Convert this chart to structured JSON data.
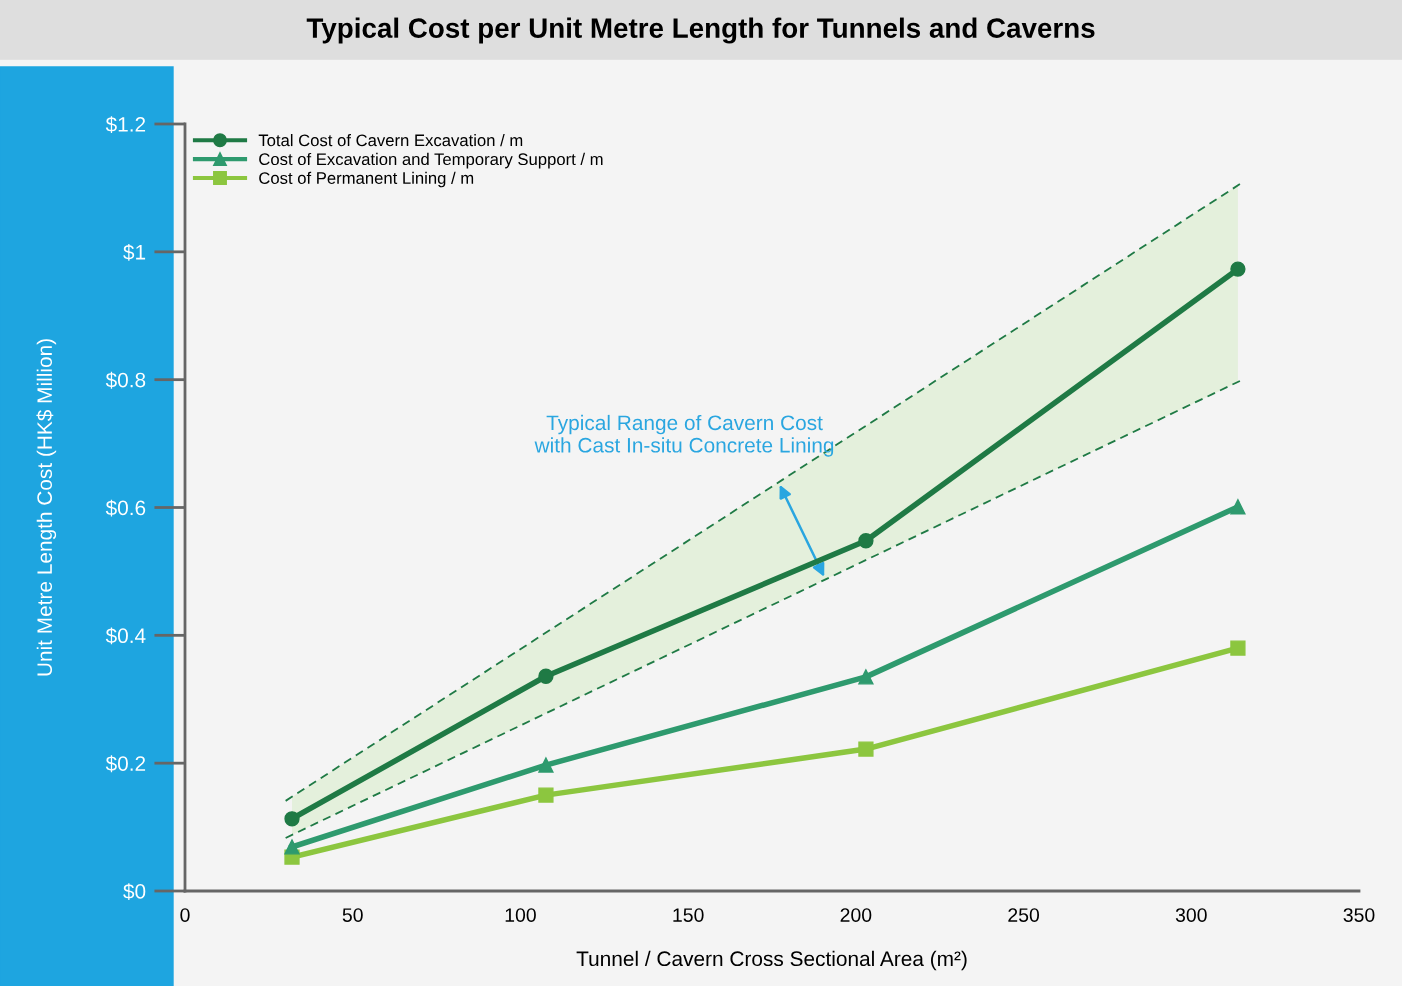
{
  "chart_data": {
    "type": "line",
    "title": "Typical Cost per Unit Metre Length for Tunnels and Caverns",
    "xlabel": "Tunnel / Cavern Cross Sectional Area (m²)",
    "ylabel": "Unit Metre Length Cost (HK$ Million)",
    "xlim": [
      0,
      350
    ],
    "xticks": [
      0,
      50,
      100,
      150,
      200,
      250,
      300,
      350
    ],
    "ylim": [
      0,
      1.2
    ],
    "yticks": [
      {
        "value": 0,
        "label": "$0"
      },
      {
        "value": 0.2,
        "label": "$0.2"
      },
      {
        "value": 0.4,
        "label": "$0.4"
      },
      {
        "value": 0.6,
        "label": "$0.6"
      },
      {
        "value": 0.8,
        "label": "$0.8"
      },
      {
        "value": 1,
        "label": "$1"
      },
      {
        "value": 1.2,
        "label": "$1.2"
      }
    ],
    "grid": false,
    "legend": "top left",
    "line_style": "solid",
    "series": [
      {
        "name": "Total Cost of Cavern Excavation / m",
        "color": "#1f7a45",
        "marker": "circle",
        "x": [
          31.9,
          107.6,
          203,
          313.9
        ],
        "values": [
          0.113,
          0.336,
          0.548,
          0.973
        ],
        "lower": [
          0.088,
          0.278,
          0.518,
          0.796
        ],
        "upper": [
          0.147,
          0.404,
          0.728,
          1.104
        ]
      },
      {
        "name": "Cost of Excavation and Temporary Support / m",
        "color": "#2e9a6e",
        "marker": "triangle",
        "x": [
          31.9,
          107.6,
          203,
          313.9
        ],
        "values": [
          0.069,
          0.197,
          0.335,
          0.601
        ]
      },
      {
        "name": "Cost of Permanent Lining / m",
        "color": "#8cc63f",
        "marker": "square",
        "x": [
          31.9,
          107.6,
          203,
          313.9
        ],
        "values": [
          0.053,
          0.15,
          0.222,
          0.38
        ]
      },
      {
        "color": "#1f7a45",
        "line_style": "dashed",
        "x": [
          30,
          314.5
        ],
        "values": [
          0.141,
          1.106
        ]
      },
      {
        "color": "#1f7a45",
        "line_style": "dashed",
        "x": [
          30,
          314.5
        ],
        "values": [
          0.083,
          0.798
        ]
      }
    ],
    "annotations": [
      "Typical Range of Cavern Cost\nwith Cast In-situ Concrete Lining"
    ]
  }
}
